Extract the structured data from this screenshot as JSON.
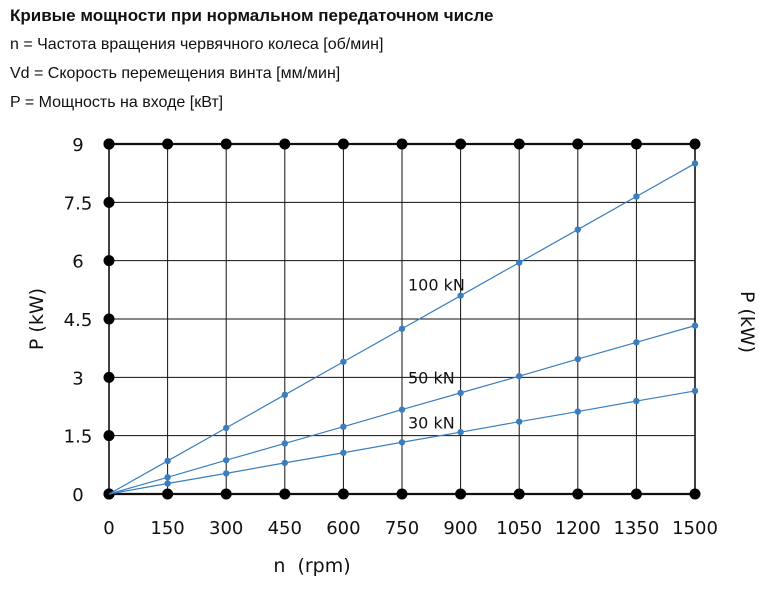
{
  "header": {
    "title": "Кривые мощности при нормальном передаточном числе",
    "line1": "n = Частота вращения червячного колеса [об/мин]",
    "line2": "Vd = Скорость перемещения винта [мм/мин]",
    "line3": "P = Мощность на входе [кВт]"
  },
  "chart_data": {
    "type": "line",
    "xlabel": "n  (rpm)",
    "ylabel": "P (kW)",
    "right_label_fragment": "P (kW)",
    "xlim": [
      0,
      1500
    ],
    "ylim": [
      0,
      9
    ],
    "x_ticks": [
      "0",
      "150",
      "300",
      "450",
      "600",
      "750",
      "900",
      "1050",
      "1200",
      "1350",
      "1500"
    ],
    "y_ticks": [
      "0",
      "1.5",
      "3",
      "4.5",
      "6",
      "7.5",
      "9"
    ],
    "grid": true,
    "x": [
      0,
      150,
      300,
      450,
      600,
      750,
      900,
      1050,
      1200,
      1350,
      1500
    ],
    "series": [
      {
        "name": "100 kN",
        "values": [
          0,
          0.85,
          1.7,
          2.55,
          3.4,
          4.25,
          5.1,
          5.95,
          6.8,
          7.65,
          8.5
        ]
      },
      {
        "name": "50 kN",
        "values": [
          0,
          0.43,
          0.87,
          1.3,
          1.73,
          2.17,
          2.6,
          3.03,
          3.47,
          3.9,
          4.33
        ]
      },
      {
        "name": "30 kN",
        "values": [
          0,
          0.27,
          0.53,
          0.8,
          1.06,
          1.33,
          1.59,
          1.86,
          2.12,
          2.39,
          2.65
        ]
      }
    ],
    "colors": {
      "series": "#3a7ebf",
      "grid": "#111111",
      "marker": "#000000"
    }
  }
}
